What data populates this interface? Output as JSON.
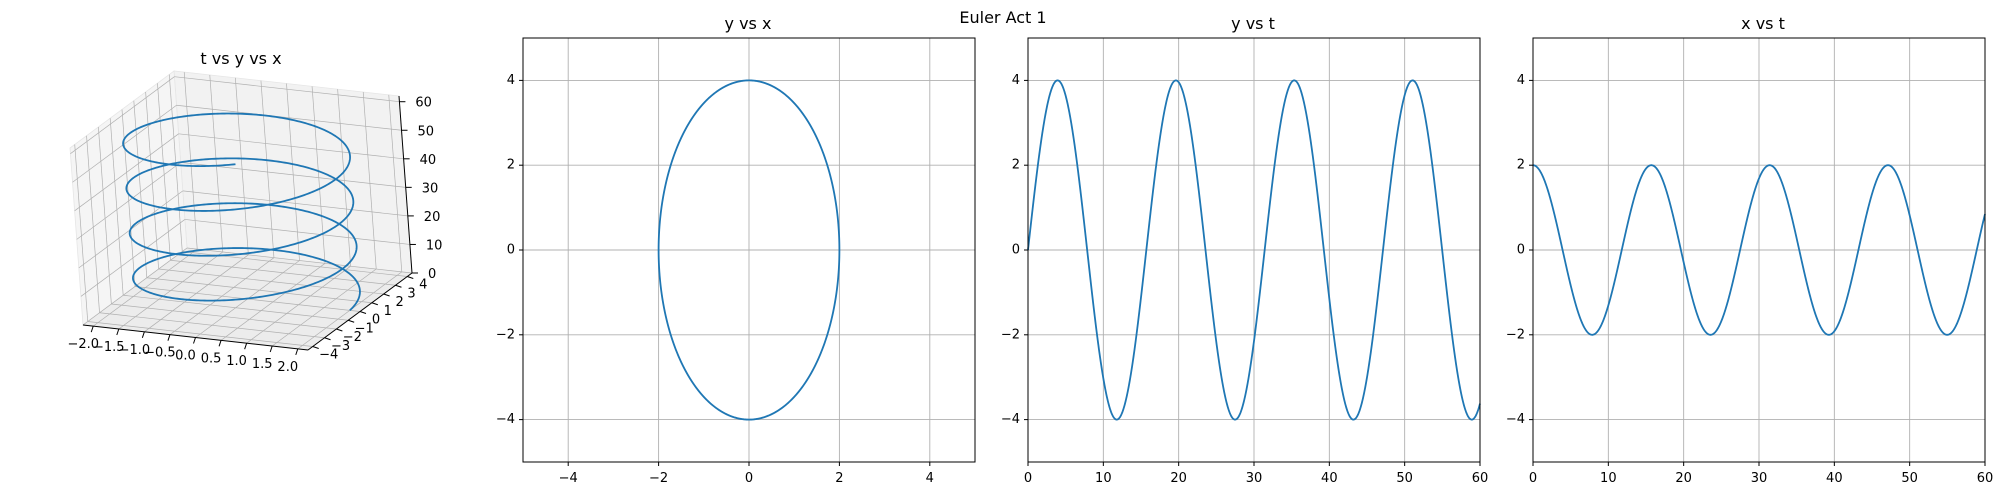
{
  "figure": {
    "suptitle": "Euler Act 1"
  },
  "colors": {
    "line": "#1f77b4",
    "grid": "#b0b0b0",
    "pane": "#f2f2f2",
    "axis": "#000000"
  },
  "chart_data": [
    {
      "type": "line3d",
      "title": "t vs y vs x",
      "x_ticks": [
        "−2.0",
        "−1.5",
        "−1.0",
        "−0.5",
        "0.0",
        "0.5",
        "1.0",
        "1.5",
        "2.0"
      ],
      "y_ticks": [
        "−4",
        "−3",
        "−2",
        "−1",
        "0",
        "1",
        "2",
        "3",
        "4"
      ],
      "z_ticks": [
        "0",
        "10",
        "20",
        "30",
        "40",
        "50",
        "60"
      ],
      "xlim": [
        -2.2,
        2.2
      ],
      "ylim": [
        -4.4,
        4.4
      ],
      "zlim": [
        0,
        62
      ],
      "series": [
        {
          "x_amplitude": 2,
          "y_amplitude": 4,
          "angular_frequency": 0.4,
          "t_range": [
            0,
            60
          ]
        }
      ],
      "grid": true
    },
    {
      "type": "line",
      "title": "y vs x",
      "xlim": [
        -5,
        5
      ],
      "ylim": [
        -5,
        5
      ],
      "x_ticks": [
        "−4",
        "−2",
        "0",
        "2",
        "4"
      ],
      "y_ticks": [
        "−4",
        "−2",
        "0",
        "2",
        "4"
      ],
      "series": [
        {
          "x_amplitude": 2,
          "y_amplitude": 4,
          "note_shape": "ellipse",
          "t_range": [
            0,
            60
          ]
        }
      ],
      "grid": true
    },
    {
      "type": "line",
      "title": "y vs t",
      "xlim": [
        0,
        60
      ],
      "ylim": [
        -5,
        5
      ],
      "x_ticks": [
        "0",
        "10",
        "20",
        "30",
        "40",
        "50",
        "60"
      ],
      "y_ticks": [
        "−4",
        "−2",
        "0",
        "2",
        "4"
      ],
      "series": [
        {
          "function": "4*sin(0.4*t)",
          "amplitude": 4,
          "angular_frequency": 0.4
        }
      ],
      "grid": true
    },
    {
      "type": "line",
      "title": "x vs t",
      "xlim": [
        0,
        60
      ],
      "ylim": [
        -5,
        5
      ],
      "x_ticks": [
        "0",
        "10",
        "20",
        "30",
        "40",
        "50",
        "60"
      ],
      "y_ticks": [
        "−4",
        "−2",
        "0",
        "2",
        "4"
      ],
      "series": [
        {
          "function": "2*cos(0.4*t)",
          "amplitude": 2,
          "angular_frequency": 0.4
        }
      ],
      "grid": true
    }
  ]
}
